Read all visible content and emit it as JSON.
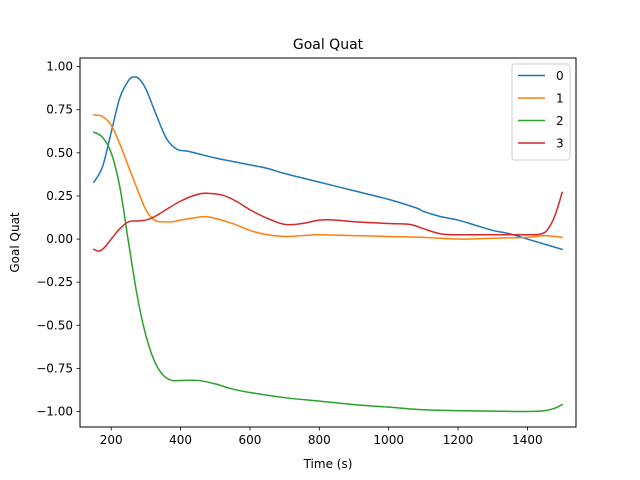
{
  "chart_data": {
    "type": "line",
    "title": "Goal Quat",
    "xlabel": "Time (s)",
    "ylabel": "Goal Quat",
    "xlim": [
      110,
      1540
    ],
    "ylim": [
      -1.09,
      1.05
    ],
    "xticks": [
      200,
      400,
      600,
      800,
      1000,
      1200,
      1400
    ],
    "yticks": [
      1.0,
      0.75,
      0.5,
      0.25,
      0.0,
      -0.25,
      -0.5,
      -0.75,
      -1.0
    ],
    "ytick_labels": [
      "1.00",
      "0.75",
      "0.50",
      "0.25",
      "0.00",
      "−0.25",
      "−0.50",
      "−0.75",
      "−1.00"
    ],
    "grid": false,
    "legend_position": "top-right",
    "series": [
      {
        "name": "0",
        "color": "#1f77b4",
        "x": [
          150,
          175,
          200,
          225,
          250,
          265,
          280,
          300,
          330,
          360,
          390,
          420,
          460,
          500,
          550,
          600,
          650,
          700,
          800,
          900,
          1000,
          1080,
          1100,
          1150,
          1200,
          1250,
          1300,
          1350,
          1400,
          1450,
          1500
        ],
        "y": [
          0.33,
          0.42,
          0.62,
          0.82,
          0.92,
          0.94,
          0.93,
          0.87,
          0.72,
          0.58,
          0.52,
          0.51,
          0.49,
          0.47,
          0.45,
          0.43,
          0.41,
          0.38,
          0.33,
          0.28,
          0.23,
          0.18,
          0.16,
          0.13,
          0.11,
          0.08,
          0.05,
          0.03,
          0.0,
          -0.03,
          -0.06
        ]
      },
      {
        "name": "1",
        "color": "#ff7f0e",
        "x": [
          150,
          175,
          200,
          225,
          250,
          275,
          300,
          325,
          350,
          375,
          400,
          430,
          470,
          500,
          550,
          600,
          650,
          700,
          750,
          800,
          900,
          1000,
          1100,
          1200,
          1300,
          1400,
          1450,
          1500
        ],
        "y": [
          0.72,
          0.71,
          0.66,
          0.55,
          0.42,
          0.29,
          0.17,
          0.11,
          0.1,
          0.1,
          0.11,
          0.12,
          0.13,
          0.12,
          0.09,
          0.05,
          0.025,
          0.015,
          0.02,
          0.025,
          0.02,
          0.015,
          0.01,
          0.0,
          0.005,
          0.01,
          0.02,
          0.01
        ]
      },
      {
        "name": "2",
        "color": "#2ca02c",
        "x": [
          150,
          175,
          200,
          225,
          250,
          275,
          300,
          325,
          350,
          375,
          400,
          450,
          500,
          550,
          600,
          700,
          800,
          900,
          1000,
          1100,
          1200,
          1300,
          1400,
          1450,
          1480,
          1500
        ],
        "y": [
          0.62,
          0.59,
          0.5,
          0.3,
          -0.02,
          -0.33,
          -0.56,
          -0.71,
          -0.79,
          -0.82,
          -0.82,
          -0.82,
          -0.84,
          -0.87,
          -0.89,
          -0.92,
          -0.94,
          -0.96,
          -0.975,
          -0.99,
          -0.995,
          -0.998,
          -1.0,
          -0.995,
          -0.98,
          -0.96
        ]
      },
      {
        "name": "3",
        "color": "#d62728",
        "x": [
          150,
          165,
          180,
          200,
          225,
          250,
          275,
          300,
          325,
          350,
          400,
          450,
          480,
          520,
          560,
          600,
          650,
          700,
          750,
          800,
          850,
          900,
          1000,
          1060,
          1100,
          1150,
          1200,
          1300,
          1400,
          1440,
          1460,
          1480,
          1500
        ],
        "y": [
          -0.06,
          -0.07,
          -0.05,
          0.0,
          0.06,
          0.1,
          0.105,
          0.11,
          0.13,
          0.16,
          0.22,
          0.26,
          0.265,
          0.255,
          0.22,
          0.17,
          0.12,
          0.085,
          0.09,
          0.11,
          0.11,
          0.1,
          0.09,
          0.085,
          0.06,
          0.03,
          0.025,
          0.025,
          0.025,
          0.03,
          0.06,
          0.14,
          0.27
        ]
      }
    ]
  }
}
